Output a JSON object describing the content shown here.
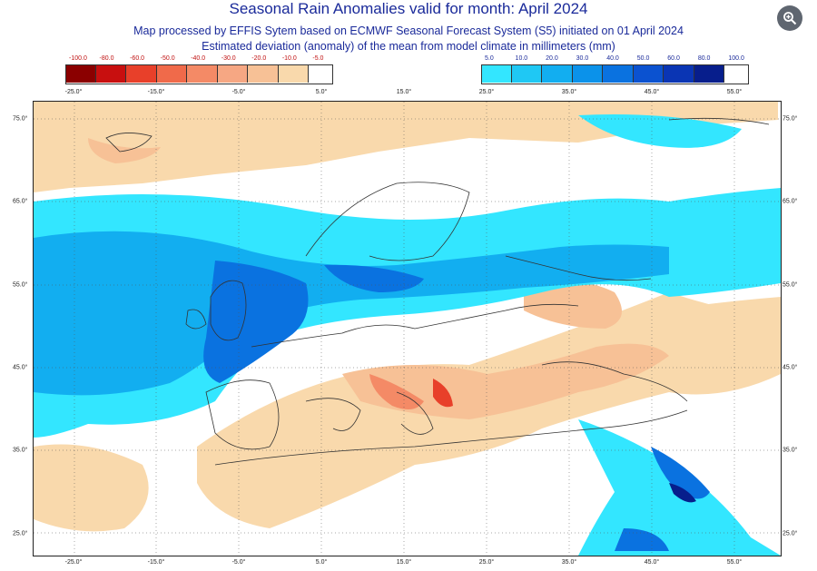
{
  "header": {
    "title": "Seasonal Rain Anomalies valid for month: April 2024",
    "line1": "Map processed by EFFIS Sytem based on ECMWF Seasonal Forecast System (S5) initiated on 01 April 2024",
    "line2": "Estimated deviation (anomaly) of the mean from model climate in millimeters (mm)"
  },
  "legend_negative": [
    {
      "label": "-100.0",
      "color": "#8b0000"
    },
    {
      "label": "-80.0",
      "color": "#c80f0f"
    },
    {
      "label": "-60.0",
      "color": "#e8402a"
    },
    {
      "label": "-50.0",
      "color": "#f06a4a"
    },
    {
      "label": "-40.0",
      "color": "#f48a66"
    },
    {
      "label": "-30.0",
      "color": "#f6a783"
    },
    {
      "label": "-20.0",
      "color": "#f7c196"
    },
    {
      "label": "-10.0",
      "color": "#f9d9ac"
    },
    {
      "label": "-5.0",
      "color": ""
    }
  ],
  "legend_positive": [
    {
      "label": "5.0",
      "color": "#33e6ff"
    },
    {
      "label": "10.0",
      "color": "#1fc8f4"
    },
    {
      "label": "20.0",
      "color": "#12aef0"
    },
    {
      "label": "30.0",
      "color": "#0b92ea"
    },
    {
      "label": "40.0",
      "color": "#0a72e0"
    },
    {
      "label": "50.0",
      "color": "#0b52d0"
    },
    {
      "label": "60.0",
      "color": "#0a35b4"
    },
    {
      "label": "80.0",
      "color": "#071e8c"
    },
    {
      "label": "100.0",
      "color": ""
    }
  ],
  "lon_labels": [
    "-25.0°",
    "-15.0°",
    "-5.0°",
    "5.0°",
    "15.0°",
    "25.0°",
    "35.0°",
    "45.0°",
    "55.0°"
  ],
  "lat_labels": [
    "75.0°",
    "65.0°",
    "55.0°",
    "45.0°",
    "35.0°",
    "25.0°"
  ],
  "icons": {
    "zoom": "zoom-in-icon"
  },
  "colors": {
    "title_text": "#1a2a9a",
    "neg_text": "#c01010",
    "dry_light": "#f9d9ac",
    "dry_mid": "#f7c196",
    "dry_strong": "#f48a66",
    "wet_light": "#33e6ff",
    "wet_mid": "#12aef0",
    "wet_strong": "#0a72e0",
    "wet_deep": "#071e8c"
  }
}
